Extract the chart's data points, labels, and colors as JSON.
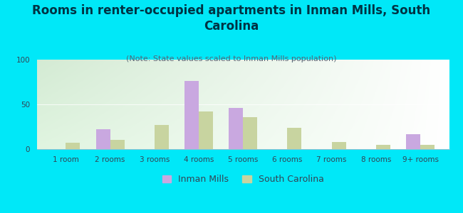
{
  "title": "Rooms in renter-occupied apartments in Inman Mills, South\nCarolina",
  "subtitle": "(Note: State values scaled to Inman Mills population)",
  "categories": [
    "1 room",
    "2 rooms",
    "3 rooms",
    "4 rooms",
    "5 rooms",
    "6 rooms",
    "7 rooms",
    "8 rooms",
    "9+ rooms"
  ],
  "inman_mills": [
    0,
    22,
    0,
    76,
    46,
    0,
    0,
    0,
    17
  ],
  "south_carolina": [
    7,
    10,
    27,
    42,
    36,
    24,
    8,
    5,
    5
  ],
  "inman_color": "#c9a8e0",
  "sc_color": "#c8d4a0",
  "background_outer": "#00e8f8",
  "ylim": [
    0,
    100
  ],
  "yticks": [
    0,
    50,
    100
  ],
  "bar_width": 0.32,
  "title_fontsize": 12,
  "subtitle_fontsize": 8,
  "tick_fontsize": 7.5,
  "legend_fontsize": 9,
  "title_color": "#003344",
  "subtitle_color": "#556677",
  "tick_color": "#334455"
}
